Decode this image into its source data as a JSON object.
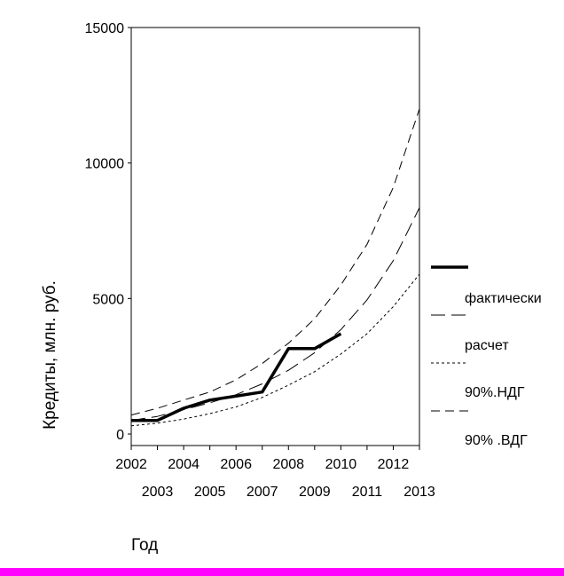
{
  "chart_data": {
    "type": "line",
    "xlabel": "Год",
    "ylabel": "Кредиты, млн. руб.",
    "xlim": [
      2002,
      2013
    ],
    "ylim": [
      0,
      15000
    ],
    "x_ticks": [
      2002,
      2003,
      2004,
      2005,
      2006,
      2007,
      2008,
      2009,
      2010,
      2011,
      2012,
      2013
    ],
    "x_tick_labels": [
      "2002",
      "2003",
      "2004",
      "2005",
      "2006",
      "2007",
      "2008",
      "2009",
      "2010",
      "2011",
      "2012",
      "2013"
    ],
    "y_ticks": [
      0,
      5000,
      10000,
      15000
    ],
    "y_tick_labels": [
      "0",
      "5000",
      "10000",
      "15000"
    ],
    "grid": false,
    "legend_position": "right",
    "series": [
      {
        "name": "фактически",
        "style": "solid-thick",
        "color": "#000000",
        "x": [
          2002,
          2003,
          2004,
          2005,
          2006,
          2007,
          2008,
          2009,
          2010
        ],
        "y": [
          500,
          500,
          950,
          1250,
          1400,
          1550,
          3150,
          3150,
          3700
        ]
      },
      {
        "name": "расчет",
        "style": "long-dash",
        "color": "#000000",
        "x": [
          2002,
          2003,
          2004,
          2005,
          2006,
          2007,
          2008,
          2009,
          2010,
          2011,
          2012,
          2013
        ],
        "y": [
          500,
          650,
          900,
          1150,
          1450,
          1850,
          2350,
          3000,
          3850,
          4950,
          6400,
          8350
        ]
      },
      {
        "name": "90%.НДГ",
        "style": "short-dash",
        "color": "#000000",
        "x": [
          2002,
          2003,
          2004,
          2005,
          2006,
          2007,
          2008,
          2009,
          2010,
          2011,
          2012,
          2013
        ],
        "y": [
          300,
          400,
          550,
          750,
          1000,
          1350,
          1800,
          2300,
          2950,
          3700,
          4700,
          5900
        ]
      },
      {
        "name": "90% .ВДГ",
        "style": "dash-gap",
        "color": "#000000",
        "x": [
          2002,
          2003,
          2004,
          2005,
          2006,
          2007,
          2008,
          2009,
          2010,
          2011,
          2012,
          2013
        ],
        "y": [
          700,
          950,
          1250,
          1550,
          2000,
          2600,
          3350,
          4250,
          5500,
          7000,
          9100,
          12000
        ]
      }
    ]
  },
  "colors": {
    "bottom_bar": "#ff00ff"
  }
}
